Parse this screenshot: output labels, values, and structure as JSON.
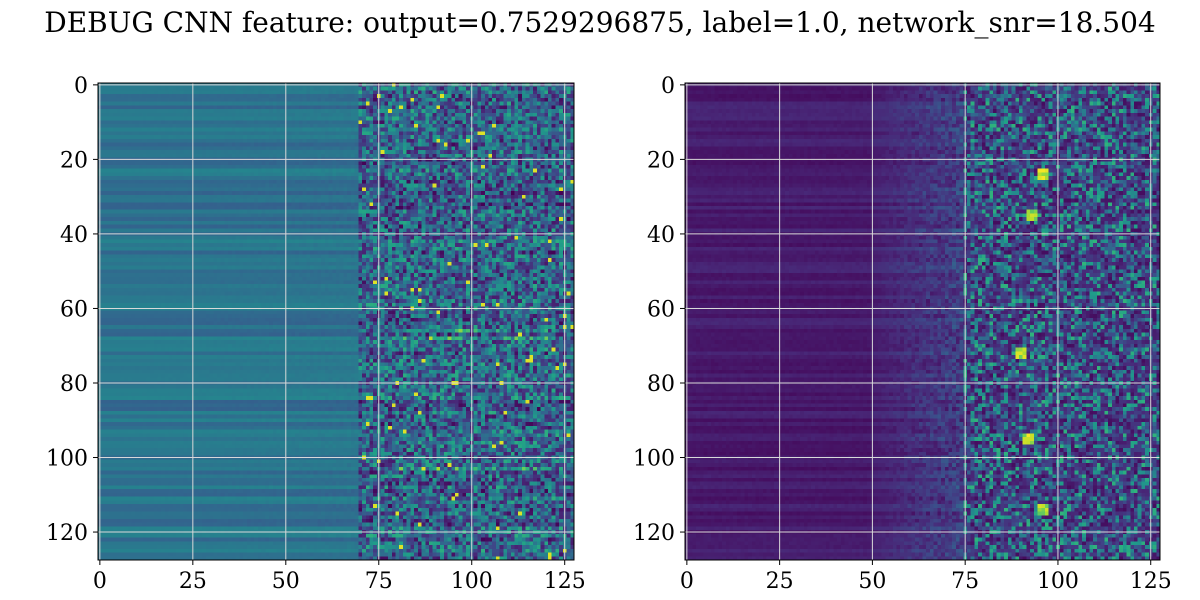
{
  "figure": {
    "title": "DEBUG CNN feature: output=0.7529296875, label=1.0, network_snr=18.504"
  },
  "chart_data": [
    {
      "type": "heatmap",
      "colormap": "viridis",
      "rows": 128,
      "cols": 128,
      "xlim": [
        0,
        127
      ],
      "ylim": [
        127,
        0
      ],
      "xticks": [
        0,
        25,
        50,
        75,
        100,
        125
      ],
      "yticks": [
        0,
        20,
        40,
        60,
        80,
        100,
        120
      ],
      "grid": true,
      "bright_rows": [
        66,
        68,
        103
      ],
      "note_pattern": "columns 0-70 smooth horizontal bands (teal/green), columns 70-127 noisy speckle with scattered yellow peaks"
    },
    {
      "type": "heatmap",
      "colormap": "viridis",
      "rows": 128,
      "cols": 128,
      "xlim": [
        0,
        127
      ],
      "ylim": [
        127,
        0
      ],
      "xticks": [
        0,
        25,
        50,
        75,
        100,
        125
      ],
      "yticks": [
        0,
        20,
        40,
        60,
        80,
        100,
        120
      ],
      "grid": true,
      "peak_cells": [
        [
          24,
          96
        ],
        [
          95,
          92
        ],
        [
          114,
          96
        ],
        [
          35,
          93
        ],
        [
          72,
          90
        ]
      ],
      "note_pattern": "mostly dark purple, right half noisy with teal speckle and a few yellow peaks"
    }
  ]
}
